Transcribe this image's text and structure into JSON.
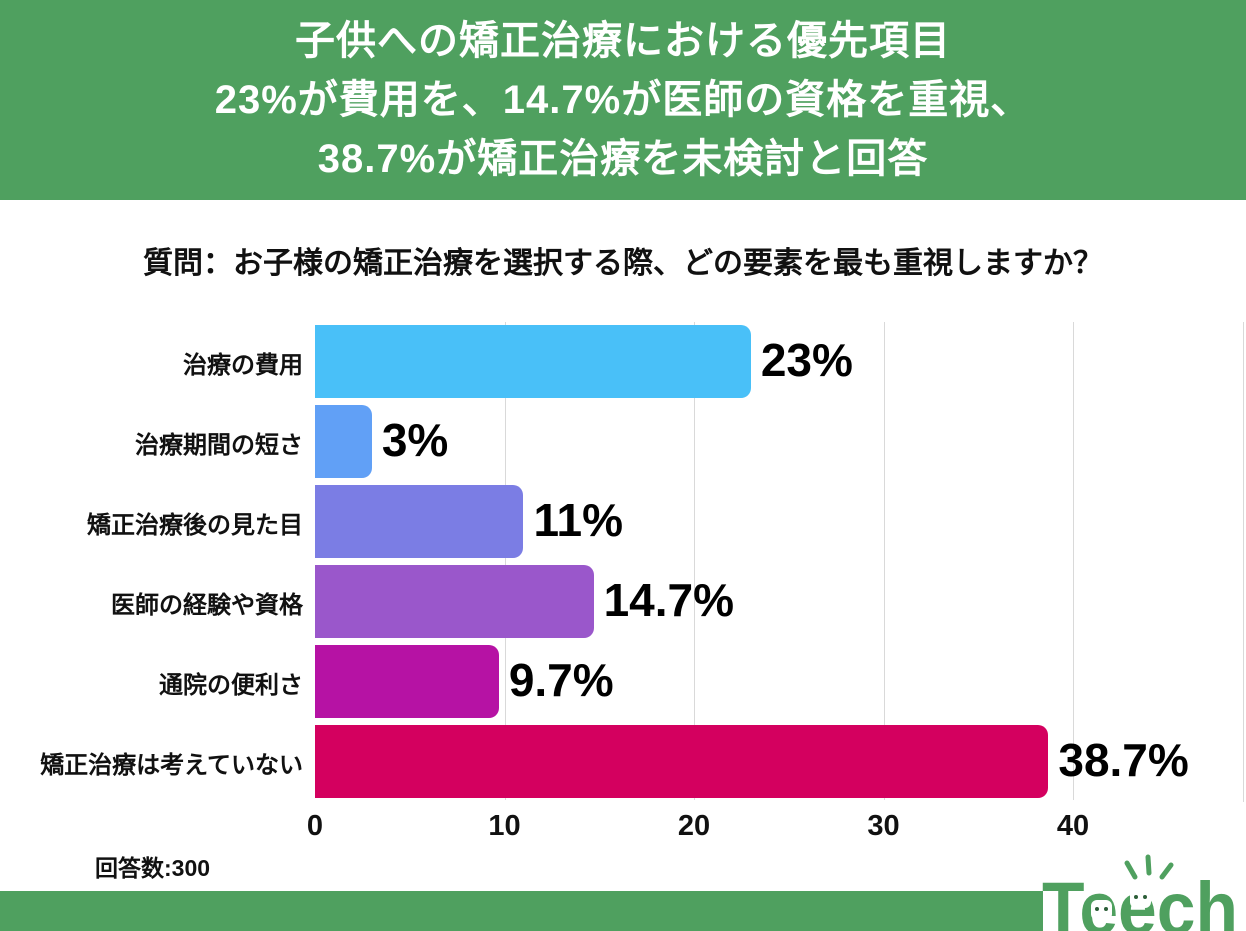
{
  "header": {
    "lines": [
      "子供への矯正治療における優先項目",
      "23%が費用を、14.7%が医師の資格を重視、",
      "38.7%が矯正治療を未検討と回答"
    ]
  },
  "question": "質問：お子様の矯正治療を選択する際、どの要素を最も重視しますか？",
  "chart_data": {
    "type": "bar",
    "orientation": "horizontal",
    "title": "子供への矯正治療における優先項目",
    "categories": [
      "治療の費用",
      "治療期間の短さ",
      "矯正治療後の見た目",
      "医師の経験や資格",
      "通院の便利さ",
      "矯正治療は考えていない"
    ],
    "values": [
      23,
      3,
      11,
      14.7,
      9.7,
      38.7
    ],
    "value_labels": [
      "23%",
      "3%",
      "11%",
      "14.7%",
      "9.7%",
      "38.7%"
    ],
    "bar_colors": [
      "#49c0f8",
      "#61a0f6",
      "#7b7de4",
      "#9a57cb",
      "#b612a4",
      "#d4005f"
    ],
    "unit": "%",
    "xlabel": "",
    "ylabel": "",
    "xlim": [
      0,
      40
    ],
    "x_ticks": [
      0,
      10,
      20,
      30,
      40
    ],
    "x_tick_labels": [
      "0",
      "10",
      "20",
      "30",
      "40"
    ],
    "grid": true,
    "legend": false
  },
  "footnote": "回答数:300",
  "footer": {
    "logo_text": "Teech"
  },
  "colors": {
    "brand_green": "#4fa05f",
    "grid_gray": "#d9d9d9",
    "text_black": "#111111",
    "header_text": "#ffffff"
  }
}
